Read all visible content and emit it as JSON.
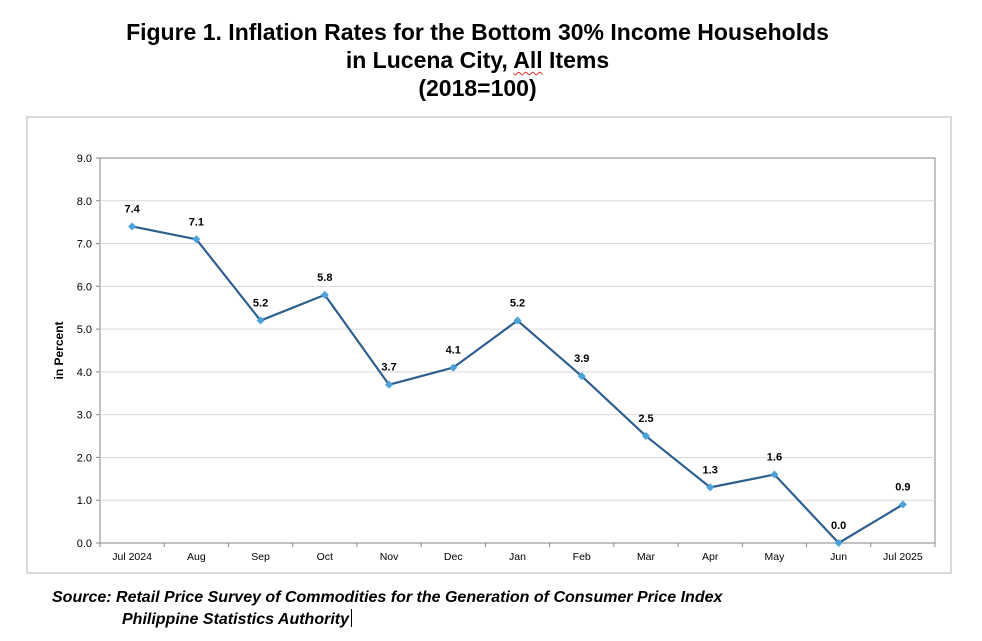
{
  "title": {
    "line1": "Figure 1. Inflation Rates for the Bottom 30% Income Households",
    "line2_prefix": "in Lucena City, ",
    "line2_flagged": "All",
    "line2_suffix": " Items",
    "line3": "(2018=100)"
  },
  "source": {
    "line1": "Source: Retail Price Survey of Commodities for the Generation of Consumer Price Index",
    "line2": "Philippine Statistics Authority"
  },
  "colors": {
    "line": "#2e5f8f",
    "marker": "#4ba3dc",
    "grid": "#d9d9d9",
    "axis": "#868686"
  },
  "chart_data": {
    "type": "line",
    "categories": [
      "Jul 2024",
      "Aug",
      "Sep",
      "Oct",
      "Nov",
      "Dec",
      "Jan",
      "Feb",
      "Mar",
      "Apr",
      "May",
      "Jun",
      "Jul 2025"
    ],
    "values": [
      7.4,
      7.1,
      5.2,
      5.8,
      3.7,
      4.1,
      5.2,
      3.9,
      2.5,
      1.3,
      1.6,
      0.0,
      0.9
    ],
    "data_labels": [
      "7.4",
      "7.1",
      "5.2",
      "5.8",
      "3.7",
      "4.1",
      "5.2",
      "3.9",
      "2.5",
      "1.3",
      "1.6",
      "0.0",
      "0.9"
    ],
    "yticks": [
      "0.0",
      "1.0",
      "2.0",
      "3.0",
      "4.0",
      "5.0",
      "6.0",
      "7.0",
      "8.0",
      "9.0"
    ],
    "ylim": [
      0,
      9
    ],
    "ylabel": "in Percent",
    "xlabel": "",
    "grid": true,
    "legend": "none"
  }
}
